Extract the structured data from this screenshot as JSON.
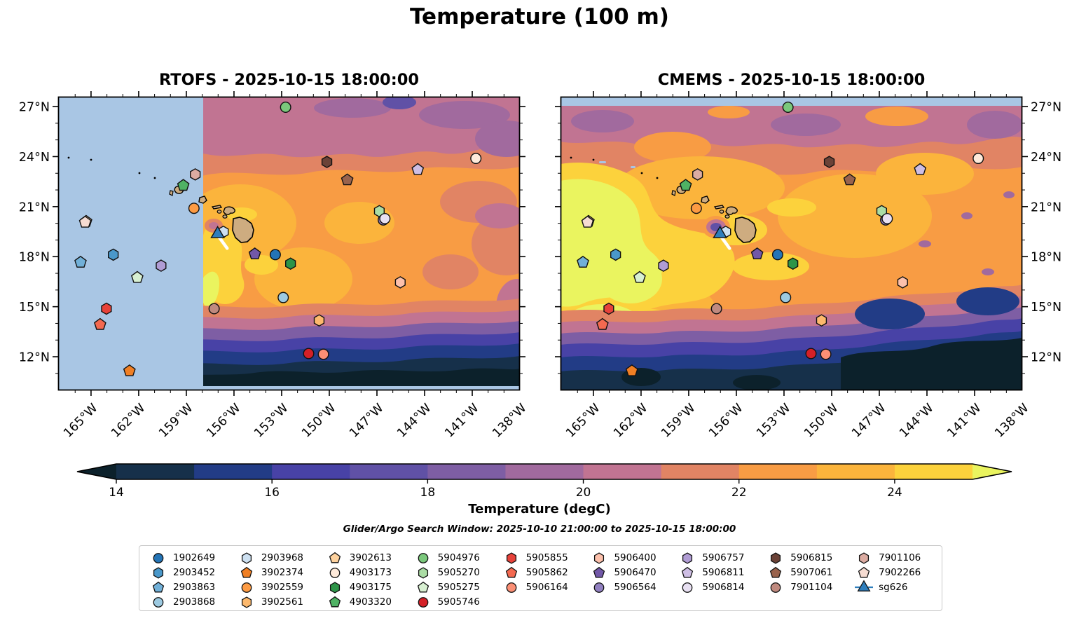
{
  "title": "Temperature (100 m)",
  "chart_data": {
    "type": "heatmap",
    "panels": [
      {
        "name": "RTOFS",
        "title": "RTOFS - 2025-10-15 18:00:00",
        "lat_label_side": "left"
      },
      {
        "name": "CMEMS",
        "title": "CMEMS - 2025-10-15 18:00:00",
        "lat_label_side": "right"
      }
    ],
    "axes": {
      "lon_major": [
        165,
        162,
        159,
        156,
        153,
        150,
        147,
        144,
        141,
        138
      ],
      "lon_labels": [
        "165°W",
        "162°W",
        "159°W",
        "156°W",
        "153°W",
        "150°W",
        "147°W",
        "144°W",
        "141°W",
        "138°W"
      ],
      "lat_major": [
        27,
        24,
        21,
        18,
        15,
        12
      ],
      "lat_labels": [
        "27°N",
        "24°N",
        "21°N",
        "18°N",
        "15°N",
        "12°N"
      ],
      "lon_range_west_to_east": [
        167.07,
        138.0
      ],
      "lat_range_south_to_north": [
        10.0,
        27.59
      ]
    },
    "colorbar": {
      "label": "Temperature (degC)",
      "tick_values": [
        14,
        16,
        18,
        20,
        22,
        24
      ],
      "tick_labels": [
        "14",
        "16",
        "18",
        "20",
        "22",
        "24"
      ],
      "levels": [
        14,
        15,
        16,
        17,
        18,
        19,
        20,
        21,
        22,
        23,
        24,
        25
      ],
      "band_colors": [
        "#16304a",
        "#223c86",
        "#4842a6",
        "#6051a6",
        "#7e5ea4",
        "#a16a9e",
        "#c17492",
        "#e18464",
        "#f89c44",
        "#fbb43c",
        "#fcd23c"
      ],
      "under_color": "#0c212b",
      "over_color": "#eaf45f"
    },
    "search_window": "Glider/Argo Search Window: 2025-10-10 21:00:00 to 2025-10-15 18:00:00",
    "floats": [
      {
        "id": "1902649",
        "shape": "circle",
        "color": "#2474b6",
        "lon": 153.4,
        "lat": 18.12
      },
      {
        "id": "2903452",
        "shape": "hexagon",
        "color": "#4a98ca",
        "lon": 163.6,
        "lat": 18.12
      },
      {
        "id": "2903863",
        "shape": "pentagon",
        "color": "#71b0d8",
        "lon": 165.66,
        "lat": 17.66
      },
      {
        "id": "2903868",
        "shape": "circle",
        "color": "#9dcae1",
        "lon": 152.9,
        "lat": 15.55
      },
      {
        "id": "2903968",
        "shape": "hexagon",
        "color": "#cde0f1",
        "lon": 156.67,
        "lat": 19.49
      },
      {
        "id": "3902374",
        "shape": "pentagon",
        "color": "#f07f24",
        "lon": 162.58,
        "lat": 11.15
      },
      {
        "id": "3902559",
        "shape": "circle",
        "color": "#fd9b43",
        "lon": 158.52,
        "lat": 20.9
      },
      {
        "id": "3902561",
        "shape": "hexagon",
        "color": "#fdb96d",
        "lon": 150.64,
        "lat": 14.18
      },
      {
        "id": "3902613",
        "shape": "pentagon",
        "color": "#fed29e",
        "lon": 165.31,
        "lat": 20.11
      },
      {
        "id": "4903173",
        "shape": "circle",
        "color": "#feeada",
        "lon": 140.77,
        "lat": 23.89
      },
      {
        "id": "4903175",
        "shape": "hexagon",
        "color": "#2d9448",
        "lon": 152.44,
        "lat": 17.58
      },
      {
        "id": "4903320",
        "shape": "pentagon",
        "color": "#4fb264",
        "lon": 159.19,
        "lat": 22.27
      },
      {
        "id": "5904976",
        "shape": "circle",
        "color": "#7bc87c",
        "lon": 152.75,
        "lat": 26.96
      },
      {
        "id": "5905270",
        "shape": "hexagon",
        "color": "#abdda5",
        "lon": 146.85,
        "lat": 20.73
      },
      {
        "id": "5905275",
        "shape": "pentagon",
        "color": "#d8f0d2",
        "lon": 162.09,
        "lat": 16.75
      },
      {
        "id": "5905746",
        "shape": "circle",
        "color": "#d42027",
        "lon": 151.3,
        "lat": 12.19
      },
      {
        "id": "5905855",
        "shape": "hexagon",
        "color": "#e7423a",
        "lon": 164.03,
        "lat": 14.88
      },
      {
        "id": "5905862",
        "shape": "pentagon",
        "color": "#f46950",
        "lon": 164.43,
        "lat": 13.93
      },
      {
        "id": "5906164",
        "shape": "circle",
        "color": "#fb8f75",
        "lon": 150.37,
        "lat": 12.15
      },
      {
        "id": "5906400",
        "shape": "hexagon",
        "color": "#fcc0ab",
        "lon": 145.53,
        "lat": 16.46
      },
      {
        "id": "5906470",
        "shape": "pentagon",
        "color": "#7258a8",
        "lon": 154.69,
        "lat": 18.16
      },
      {
        "id": "5906564",
        "shape": "circle",
        "color": "#9180c0",
        "lon": 146.6,
        "lat": 20.2
      },
      {
        "id": "5906757",
        "shape": "hexagon",
        "color": "#b09cd4",
        "lon": 160.59,
        "lat": 17.46
      },
      {
        "id": "5906811",
        "shape": "pentagon",
        "color": "#cebee4",
        "lon": 144.43,
        "lat": 23.22
      },
      {
        "id": "5906814",
        "shape": "circle",
        "color": "#e8e0f2",
        "lon": 146.5,
        "lat": 20.28
      },
      {
        "id": "5906815",
        "shape": "hexagon",
        "color": "#6b4237",
        "lon": 150.15,
        "lat": 23.68
      },
      {
        "id": "5907061",
        "shape": "pentagon",
        "color": "#99634d",
        "lon": 148.87,
        "lat": 22.6
      },
      {
        "id": "7901104",
        "shape": "circle",
        "color": "#c08a7f",
        "lon": 157.25,
        "lat": 14.88
      },
      {
        "id": "7901106",
        "shape": "hexagon",
        "color": "#dcaca2",
        "lon": 158.44,
        "lat": 22.93
      },
      {
        "id": "7902266",
        "shape": "pentagon",
        "color": "#f6dcd2",
        "lon": 165.37,
        "lat": 20.06
      }
    ],
    "glider": {
      "id": "sg626",
      "shape": "triangle",
      "color": "#2e7ebc",
      "lon": 157.03,
      "lat": 19.36,
      "track": [
        [
          157.0,
          19.25
        ],
        [
          156.43,
          18.5
        ]
      ],
      "track_color": "#ffffff"
    },
    "map_colors": {
      "no_data": "#a9c6e4",
      "land": "#ceac80",
      "coastline": "#000000"
    }
  }
}
